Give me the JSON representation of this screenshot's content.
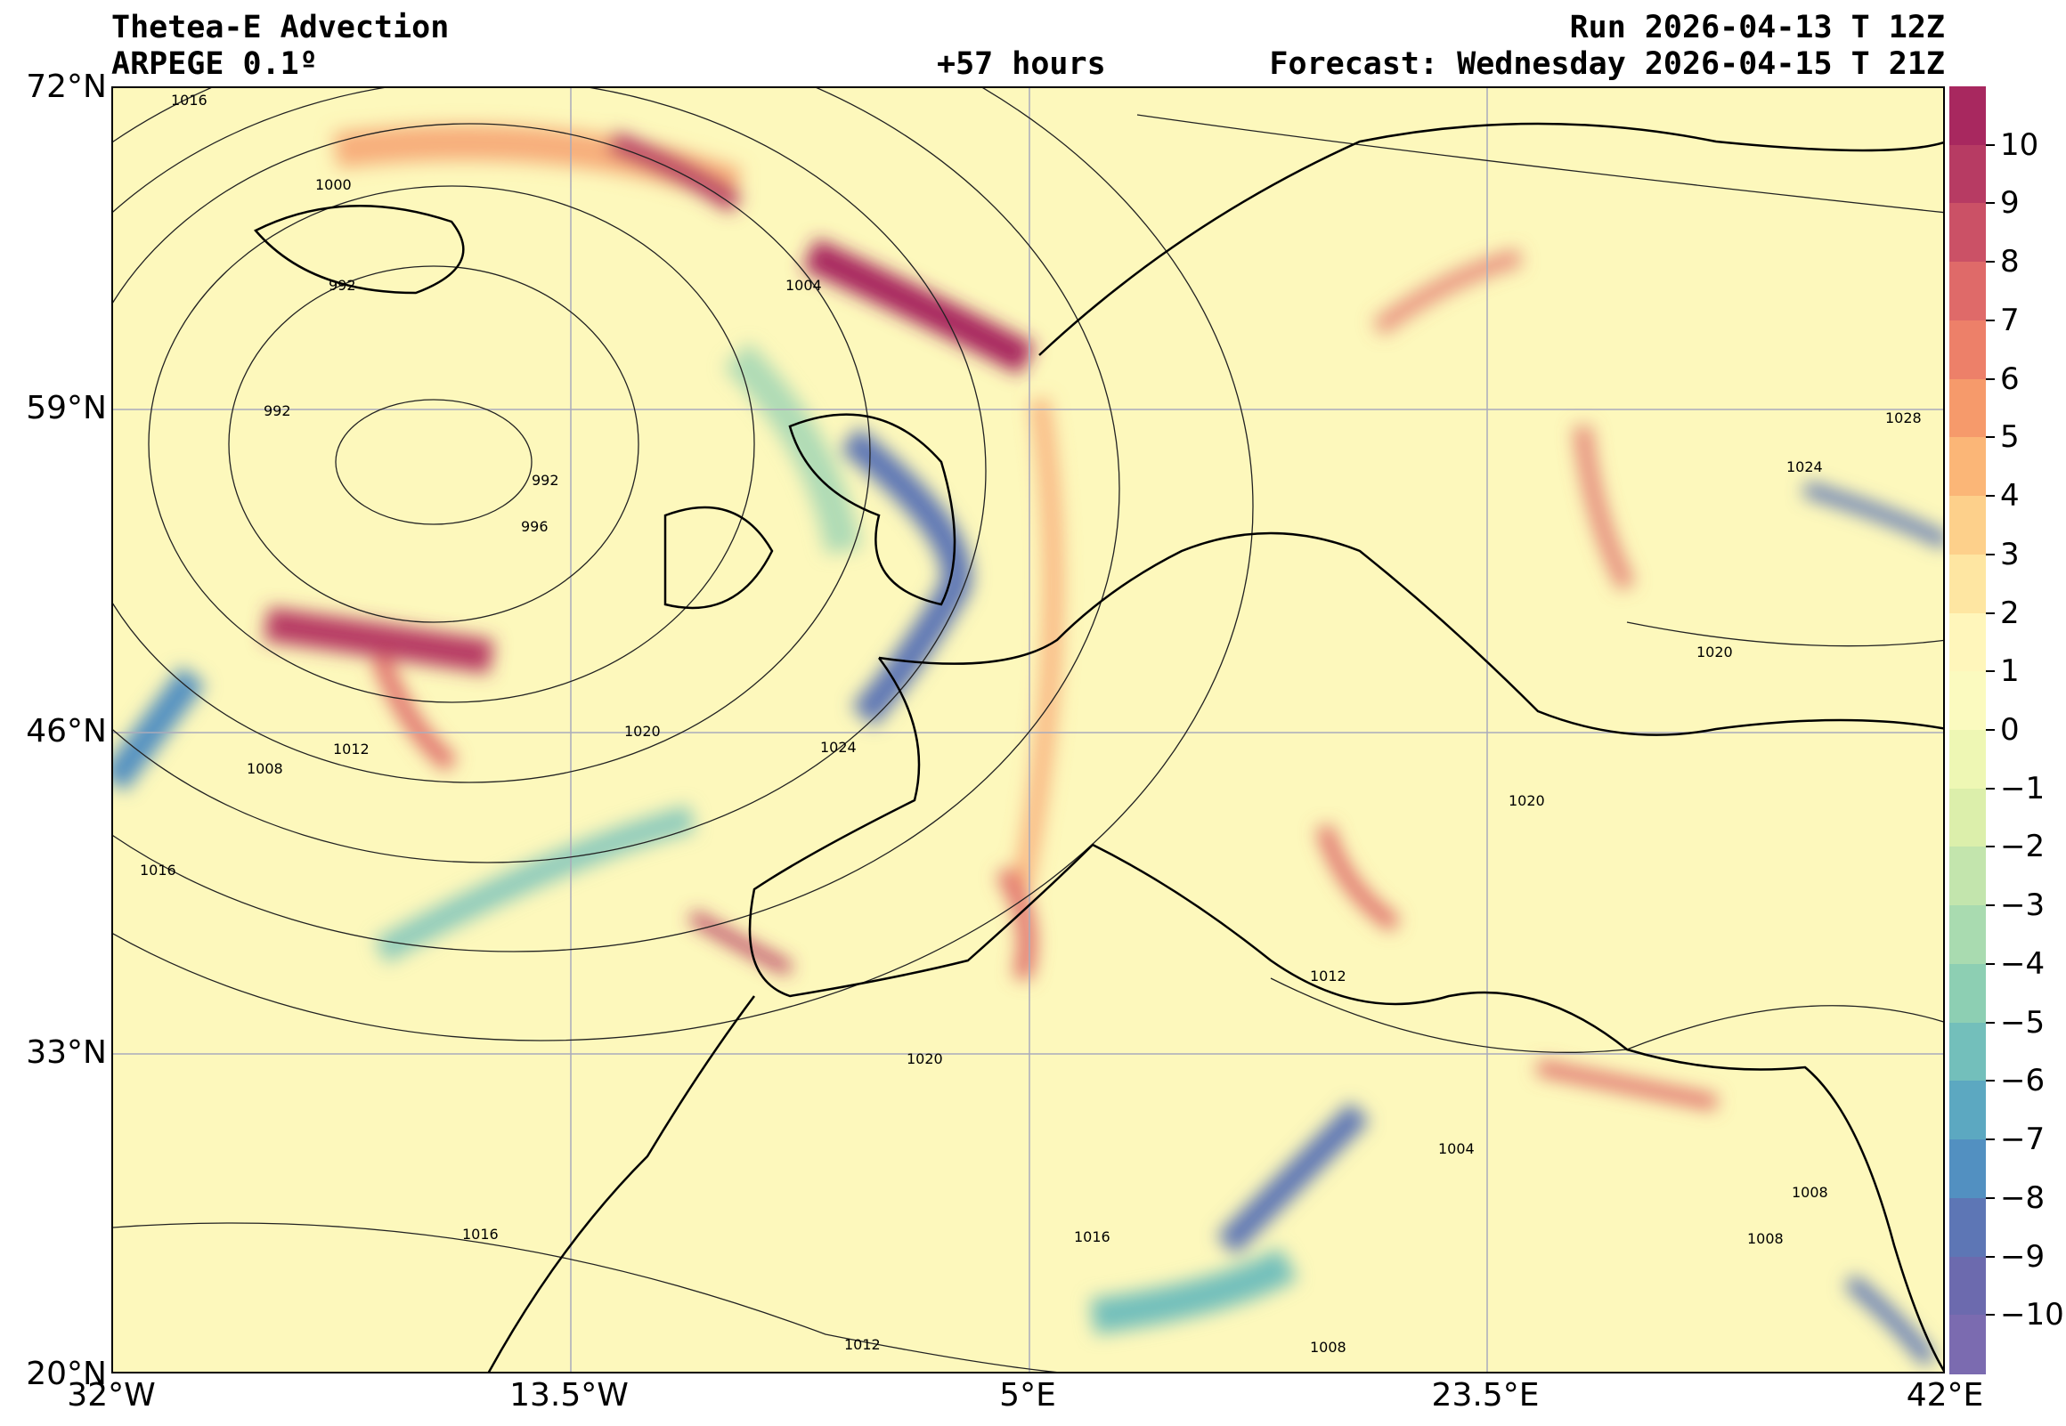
{
  "header": {
    "title": "Thetea-E Advection",
    "model": "ARPEGE 0.1º",
    "run": "Run 2026-04-13 T 12Z",
    "lead": "+57 hours",
    "forecast": "Forecast: Wednesday 2026-04-15 T 21Z"
  },
  "axes": {
    "lat_labels": [
      "72°N",
      "59°N",
      "46°N",
      "33°N",
      "20°N"
    ],
    "lon_labels": [
      "32°W",
      "13.5°W",
      "5°E",
      "23.5°E",
      "42°E"
    ]
  },
  "colorbar": {
    "ticks": [
      "10",
      "9",
      "8",
      "7",
      "6",
      "5",
      "4",
      "3",
      "2",
      "1",
      "0",
      "−1",
      "−2",
      "−3",
      "−4",
      "−5",
      "−6",
      "−7",
      "−8",
      "−9",
      "−10"
    ],
    "colors": [
      "#a8285f",
      "#b73b63",
      "#cb5166",
      "#df6a69",
      "#ed8069",
      "#f69a6b",
      "#fbb677",
      "#fdd08b",
      "#fee6a2",
      "#fff6bb",
      "#fbfabf",
      "#eef7b4",
      "#dcefab",
      "#c3e5ad",
      "#a9dbb0",
      "#8dcfb3",
      "#73bfbb",
      "#5ca8c1",
      "#5290c1",
      "#5d76b5",
      "#6c6aae",
      "#7b6bb0"
    ]
  },
  "isobar_labels": [
    "1016",
    "1000",
    "992",
    "1004",
    "992",
    "992",
    "996",
    "1020",
    "1024",
    "1012",
    "1008",
    "1016",
    "1020",
    "1024",
    "1028",
    "1020",
    "1012",
    "1020",
    "1004",
    "1016",
    "1016",
    "1012",
    "1008",
    "1008",
    "1008"
  ]
}
